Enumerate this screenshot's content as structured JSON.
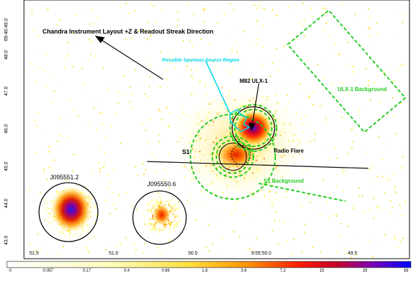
{
  "image": {
    "title": "Chandra Instrument Layout +Z & Readout Streak Direction",
    "axis": {
      "x_ticks": [
        "51.5",
        "51.0",
        "50.5",
        "9:55:50.0",
        "49.5"
      ],
      "y_ticks": [
        "69:40:49.0",
        "48.0",
        "47.0",
        "46.0",
        "45.0",
        "44.0",
        "43.0"
      ]
    },
    "labels": {
      "spurious": "Possible Spurious Source Region",
      "ulx": "M82 ULX-1",
      "ulx_bg": "ULX-1 Background",
      "radio_flare": "Radio Flare",
      "s1": "S1",
      "s1_bg": "S1 Background",
      "src1": "J095551.2",
      "src2": "J095550.6"
    },
    "colorbar": {
      "ticks": [
        "0",
        "0.057",
        "0.17",
        "0.4",
        "0.86",
        "1.8",
        "3.6",
        "7.2",
        "15",
        "29",
        "58"
      ],
      "colors": [
        "#ffffff",
        "#ffffd0",
        "#ffff80",
        "#ffe040",
        "#ffb000",
        "#ff7000",
        "#ff2000",
        "#d00020",
        "#9000a0",
        "#4010e0",
        "#0000ff"
      ]
    },
    "colors": {
      "green": "#22cc22",
      "cyan": "#00d8e8",
      "black": "#000000"
    }
  }
}
